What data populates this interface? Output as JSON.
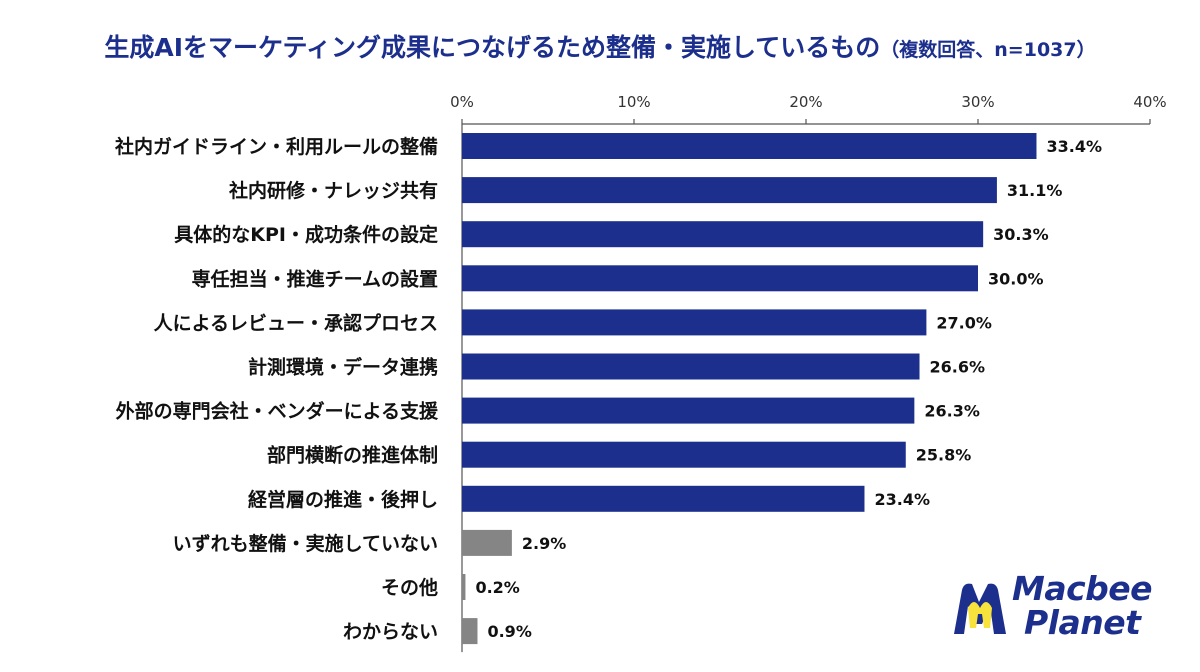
{
  "chart_data": {
    "type": "bar",
    "orientation": "horizontal",
    "title": "生成AIをマーケティング成果につなげるため整備・実施しているもの",
    "subtitle": "（複数回答、n=1037）",
    "categories": [
      "社内ガイドライン・利用ルールの整備",
      "社内研修・ナレッジ共有",
      "具体的なKPI・成功条件の設定",
      "専任担当・推進チームの設置",
      "人によるレビュー・承認プロセス",
      "計測環境・データ連携",
      "外部の専門会社・ベンダーによる支援",
      "部門横断の推進体制",
      "経営層の推進・後押し",
      "いずれも整備・実施していない",
      "その他",
      "わからない"
    ],
    "values": [
      33.4,
      31.1,
      30.3,
      30.0,
      27.0,
      26.6,
      26.3,
      25.8,
      23.4,
      2.9,
      0.2,
      0.9
    ],
    "value_labels": [
      "33.4%",
      "31.1%",
      "30.3%",
      "30.0%",
      "27.0%",
      "26.6%",
      "26.3%",
      "25.8%",
      "23.4%",
      "2.9%",
      "0.2%",
      "0.9%"
    ],
    "xlim": [
      0,
      40
    ],
    "x_ticks": [
      "0%",
      "10%",
      "20%",
      "30%",
      "40%"
    ],
    "xlabel": "",
    "ylabel": "",
    "grid": false,
    "axis_position": "top",
    "bar_colors": [
      "#1c2f8c",
      "#1c2f8c",
      "#1c2f8c",
      "#1c2f8c",
      "#1c2f8c",
      "#1c2f8c",
      "#1c2f8c",
      "#1c2f8c",
      "#1c2f8c",
      "#858585",
      "#858585",
      "#858585"
    ]
  },
  "colors": {
    "title": "#1c2f8c",
    "primary_bar": "#1c2f8c",
    "secondary_bar": "#858585",
    "axis": "#555555",
    "logo_yellow": "#f7e33b"
  },
  "logo": {
    "line1": "Macbee",
    "line2": "Planet",
    "icon": "macbee-m-icon"
  }
}
